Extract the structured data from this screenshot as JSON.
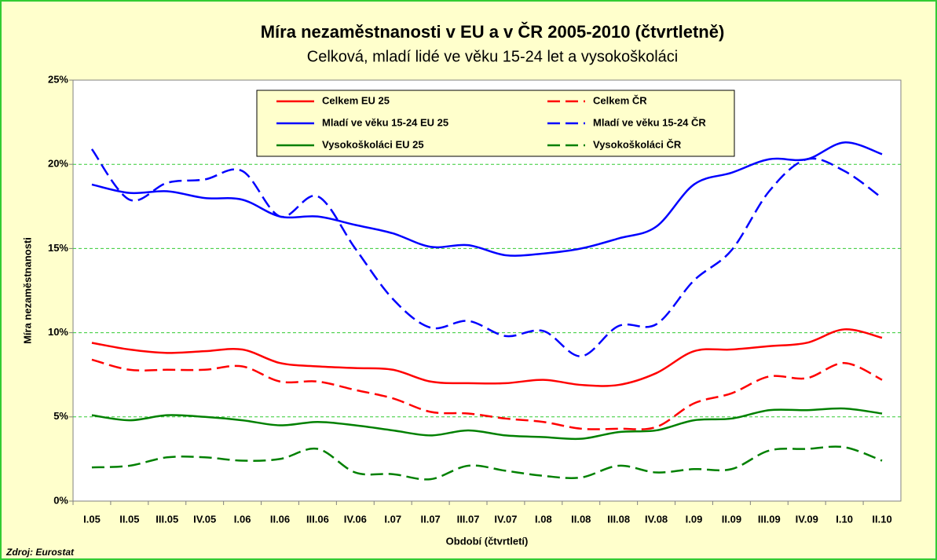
{
  "chart_data": {
    "type": "line",
    "title": "Míra nezaměstnanosti v EU a v ČR 2005-2010 (čtvrtletně)",
    "subtitle": "Celková, mladí lidé ve věku 15-24 let a vysokoškoláci",
    "x_label": "Období (čtvrtletí)",
    "y_label": "Míra nezaměstnanosti",
    "source": "Zdroj: Eurostat",
    "categories": [
      "I.05",
      "II.05",
      "III.05",
      "IV.05",
      "I.06",
      "II.06",
      "III.06",
      "IV.06",
      "I.07",
      "II.07",
      "III.07",
      "IV.07",
      "I.08",
      "II.08",
      "III.08",
      "IV.08",
      "I.09",
      "II.09",
      "III.09",
      "IV.09",
      "I.10",
      "II.10"
    ],
    "series": [
      {
        "name": "Celkem EU 25",
        "color": "#ff0000",
        "style": "solid",
        "values": [
          9.4,
          9.0,
          8.8,
          8.9,
          9.0,
          8.2,
          8.0,
          7.9,
          7.8,
          7.1,
          7.0,
          7.0,
          7.2,
          6.9,
          6.9,
          7.6,
          8.9,
          9.0,
          9.2,
          9.4,
          10.2,
          9.7
        ]
      },
      {
        "name": "Celkem ČR",
        "color": "#ff0000",
        "style": "dashed",
        "values": [
          8.4,
          7.8,
          7.8,
          7.8,
          8.0,
          7.1,
          7.1,
          6.6,
          6.1,
          5.3,
          5.2,
          4.9,
          4.7,
          4.3,
          4.3,
          4.4,
          5.8,
          6.4,
          7.4,
          7.3,
          8.2,
          7.2
        ]
      },
      {
        "name": "Mladí ve věku 15-24 EU 25",
        "color": "#0000ff",
        "style": "solid",
        "values": [
          18.8,
          18.3,
          18.4,
          18.0,
          17.9,
          16.9,
          16.9,
          16.4,
          15.9,
          15.1,
          15.2,
          14.6,
          14.7,
          15.0,
          15.6,
          16.3,
          18.8,
          19.5,
          20.3,
          20.3,
          21.3,
          20.6
        ]
      },
      {
        "name": "Mladí ve věku 15-24 ČR",
        "color": "#0000ff",
        "style": "dashed",
        "values": [
          20.9,
          17.9,
          18.9,
          19.1,
          19.6,
          16.9,
          18.1,
          15.0,
          12.0,
          10.3,
          10.7,
          9.8,
          10.1,
          8.6,
          10.4,
          10.5,
          13.1,
          14.9,
          18.4,
          20.3,
          19.6,
          18.0
        ]
      },
      {
        "name": "Vysokoškoláci EU 25",
        "color": "#008000",
        "style": "solid",
        "values": [
          5.1,
          4.8,
          5.1,
          5.0,
          4.8,
          4.5,
          4.7,
          4.5,
          4.2,
          3.9,
          4.2,
          3.9,
          3.8,
          3.7,
          4.1,
          4.2,
          4.8,
          4.9,
          5.4,
          5.4,
          5.5,
          5.2
        ]
      },
      {
        "name": "Vysokoškoláci ČR",
        "color": "#008000",
        "style": "dashed",
        "values": [
          2.0,
          2.1,
          2.6,
          2.6,
          2.4,
          2.5,
          3.1,
          1.7,
          1.6,
          1.3,
          2.1,
          1.8,
          1.5,
          1.4,
          2.1,
          1.7,
          1.9,
          1.9,
          3.0,
          3.1,
          3.2,
          2.4
        ]
      }
    ],
    "ylim": [
      0,
      25
    ],
    "yticks": [
      {
        "value": 0,
        "label": "0%"
      },
      {
        "value": 5,
        "label": "5%"
      },
      {
        "value": 10,
        "label": "10%"
      },
      {
        "value": 15,
        "label": "15%"
      },
      {
        "value": 20,
        "label": "20%"
      },
      {
        "value": 25,
        "label": "25%"
      }
    ],
    "grid": true,
    "legend_position": "top"
  }
}
